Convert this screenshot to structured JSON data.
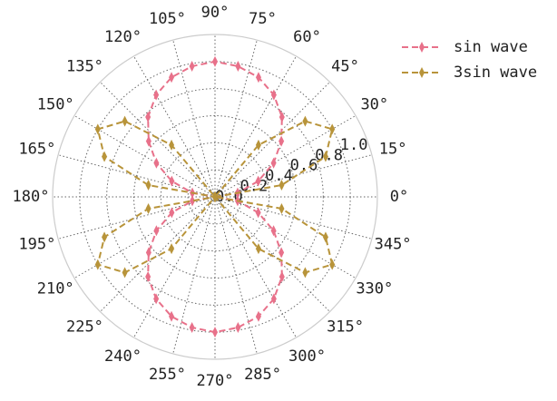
{
  "chart_data": {
    "type": "polar",
    "x": [
      0,
      10,
      20,
      30,
      40,
      50,
      60,
      70,
      80,
      90,
      100,
      110,
      120,
      130,
      140,
      150,
      160,
      170,
      180,
      190,
      200,
      210,
      220,
      230,
      240,
      250,
      260,
      270,
      280,
      290,
      300,
      310,
      320,
      330,
      340,
      350,
      360
    ],
    "series": [
      {
        "name": "sin wave",
        "color": "#e8718a",
        "values": [
          0,
          0.17,
          0.34,
          0.5,
          0.64,
          0.77,
          0.87,
          0.94,
          0.98,
          1,
          0.98,
          0.94,
          0.87,
          0.77,
          0.64,
          0.5,
          0.34,
          0.17,
          0,
          0.17,
          0.34,
          0.5,
          0.64,
          0.77,
          0.87,
          0.94,
          0.98,
          1,
          0.98,
          0.94,
          0.87,
          0.77,
          0.64,
          0.5,
          0.34,
          0.17,
          0
        ]
      },
      {
        "name": "3sin wave",
        "color": "#b8943a",
        "values": [
          0,
          0.5,
          0.87,
          1,
          0.87,
          0.5,
          0,
          0,
          0,
          0,
          0,
          0,
          0,
          0.5,
          0.87,
          1,
          0.87,
          0.5,
          0,
          0.5,
          0.87,
          1,
          0.87,
          0.5,
          0,
          0,
          0,
          0,
          0,
          0,
          0,
          0.5,
          0.87,
          1,
          0.87,
          0.5,
          0
        ]
      }
    ],
    "ylim": [
      0,
      1.2
    ],
    "yticks": [
      {
        "value": 0,
        "label": "0.0"
      },
      {
        "value": 0.2,
        "label": "0.2"
      },
      {
        "value": 0.4,
        "label": "0.4"
      },
      {
        "value": 0.6,
        "label": "0.6"
      },
      {
        "value": 0.8,
        "label": "0.8"
      },
      {
        "value": 1.0,
        "label": "1.0"
      }
    ],
    "xticks": [
      {
        "value": 0,
        "label": "0°"
      },
      {
        "value": 15,
        "label": "15°"
      },
      {
        "value": 30,
        "label": "30°"
      },
      {
        "value": 45,
        "label": "45°"
      },
      {
        "value": 60,
        "label": "60°"
      },
      {
        "value": 75,
        "label": "75°"
      },
      {
        "value": 90,
        "label": "90°"
      },
      {
        "value": 105,
        "label": "105°"
      },
      {
        "value": 120,
        "label": "120°"
      },
      {
        "value": 135,
        "label": "135°"
      },
      {
        "value": 150,
        "label": "150°"
      },
      {
        "value": 165,
        "label": "165°"
      },
      {
        "value": 180,
        "label": "180°"
      },
      {
        "value": 195,
        "label": "195°"
      },
      {
        "value": 210,
        "label": "210°"
      },
      {
        "value": 225,
        "label": "225°"
      },
      {
        "value": 240,
        "label": "240°"
      },
      {
        "value": 255,
        "label": "255°"
      },
      {
        "value": 270,
        "label": "270°"
      },
      {
        "value": 285,
        "label": "285°"
      },
      {
        "value": 300,
        "label": "300°"
      },
      {
        "value": 315,
        "label": "315°"
      },
      {
        "value": 330,
        "label": "330°"
      },
      {
        "value": 345,
        "label": "345°"
      }
    ],
    "grid": true,
    "legend": "upper right"
  }
}
